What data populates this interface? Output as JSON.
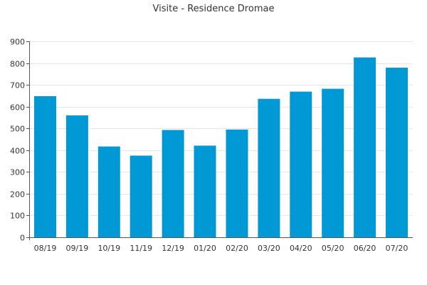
{
  "chart_data": {
    "type": "bar",
    "title": "Visite - Residence Dromae",
    "xlabel": "",
    "ylabel": "",
    "categories": [
      "08/19",
      "09/19",
      "10/19",
      "11/19",
      "12/19",
      "01/20",
      "02/20",
      "03/20",
      "04/20",
      "05/20",
      "06/20",
      "07/20"
    ],
    "values": [
      648,
      560,
      417,
      375,
      493,
      421,
      495,
      636,
      669,
      682,
      826,
      779
    ],
    "ylim": [
      0,
      900
    ],
    "yticks": [
      0,
      100,
      200,
      300,
      400,
      500,
      600,
      700,
      800,
      900
    ],
    "grid": true,
    "legend": "none",
    "bar_color": "#0099d6"
  }
}
